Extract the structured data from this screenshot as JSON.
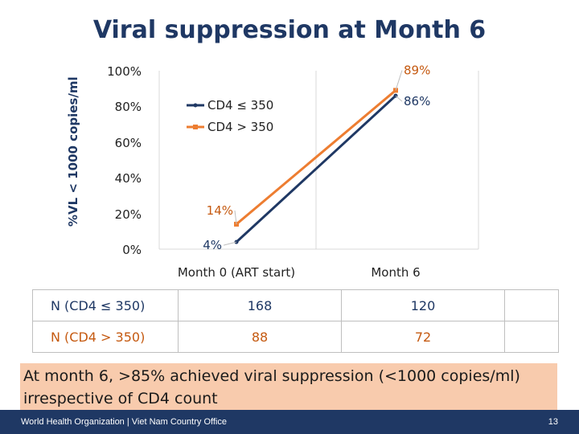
{
  "colors": {
    "series1": "#1f3864",
    "series2": "#ed7d31",
    "title": "#1f3864",
    "callout_bg": "#f8cbad",
    "footer_bg": "#1f3864"
  },
  "chart_data": {
    "type": "line",
    "title": "Viral suppression at Month 6",
    "xlabel": "",
    "ylabel": "%VL < 1000 copies/ml",
    "categories": [
      "Month 0 (ART start)",
      "Month 6"
    ],
    "ylim": [
      0,
      100
    ],
    "yticks": [
      0,
      20,
      40,
      60,
      80,
      100
    ],
    "ytick_labels": [
      "0%",
      "20%",
      "40%",
      "60%",
      "80%",
      "100%"
    ],
    "series": [
      {
        "name": "CD4 ≤ 350",
        "values": [
          4,
          86
        ],
        "labels": [
          "4%",
          "86%"
        ]
      },
      {
        "name": "CD4 > 350",
        "values": [
          14,
          89
        ],
        "labels": [
          "14%",
          "89%"
        ]
      }
    ],
    "legend": "top-left inside plot"
  },
  "table": {
    "rows": [
      {
        "label": "N (CD4 ≤ 350)",
        "values": [
          "168",
          "120"
        ]
      },
      {
        "label": "N (CD4 > 350)",
        "values": [
          "88",
          "72"
        ]
      }
    ]
  },
  "callout": "At month 6, >85% achieved viral suppression (<1000 copies/ml) irrespective of CD4 count",
  "footer": {
    "org": "World Health Organization | Viet Nam Country Office",
    "page": "13"
  }
}
